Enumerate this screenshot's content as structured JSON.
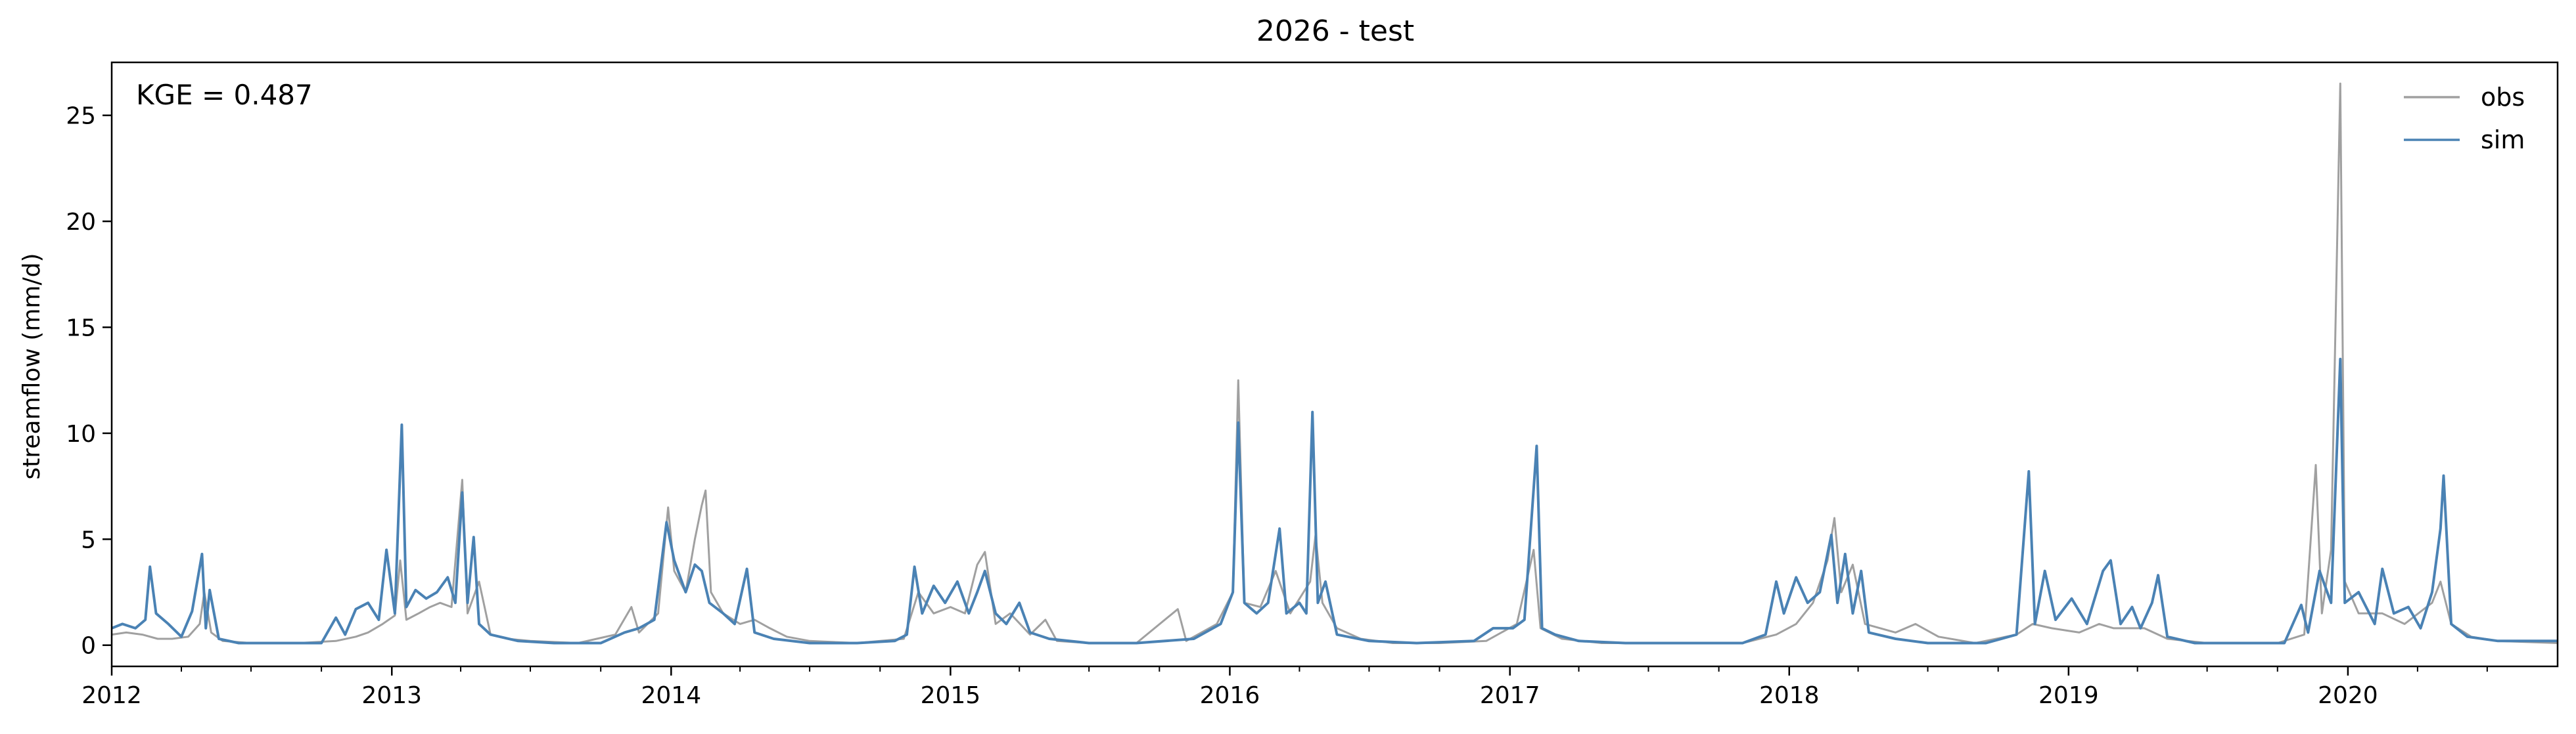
{
  "chart_data": {
    "type": "line",
    "title": "2026 - test",
    "xlabel": "",
    "ylabel": "streamflow (mm/d)",
    "annotation": "KGE = 0.487",
    "legend_position": "top-right",
    "grid": false,
    "xlim": [
      "2012-01-01",
      "2020-10-01"
    ],
    "ylim": [
      -1,
      27.5
    ],
    "x_major_ticks": [
      "2012",
      "2013",
      "2014",
      "2015",
      "2016",
      "2017",
      "2018",
      "2019",
      "2020"
    ],
    "y_ticks": [
      0,
      5,
      10,
      15,
      20,
      25
    ],
    "series": [
      {
        "name": "obs",
        "color": "#a0a0a0",
        "points": [
          [
            "2012-01-01",
            0.5
          ],
          [
            "2012-01-20",
            0.6
          ],
          [
            "2012-02-10",
            0.5
          ],
          [
            "2012-03-01",
            0.3
          ],
          [
            "2012-03-20",
            0.3
          ],
          [
            "2012-04-10",
            0.4
          ],
          [
            "2012-04-25",
            1.0
          ],
          [
            "2012-05-01",
            2.5
          ],
          [
            "2012-05-10",
            0.6
          ],
          [
            "2012-05-25",
            0.2
          ],
          [
            "2012-07-01",
            0.1
          ],
          [
            "2012-09-01",
            0.1
          ],
          [
            "2012-10-20",
            0.2
          ],
          [
            "2012-11-15",
            0.4
          ],
          [
            "2012-12-01",
            0.6
          ],
          [
            "2012-12-20",
            1.0
          ],
          [
            "2013-01-05",
            1.4
          ],
          [
            "2013-01-12",
            4.0
          ],
          [
            "2013-01-20",
            1.2
          ],
          [
            "2013-02-05",
            1.5
          ],
          [
            "2013-02-20",
            1.8
          ],
          [
            "2013-03-05",
            2.0
          ],
          [
            "2013-03-20",
            1.8
          ],
          [
            "2013-04-03",
            7.8
          ],
          [
            "2013-04-10",
            1.5
          ],
          [
            "2013-04-25",
            3.0
          ],
          [
            "2013-05-10",
            0.5
          ],
          [
            "2013-06-01",
            0.3
          ],
          [
            "2013-07-01",
            0.2
          ],
          [
            "2013-09-01",
            0.1
          ],
          [
            "2013-10-20",
            0.5
          ],
          [
            "2013-11-10",
            1.8
          ],
          [
            "2013-11-20",
            0.6
          ],
          [
            "2013-12-15",
            1.5
          ],
          [
            "2013-12-28",
            6.5
          ],
          [
            "2014-01-05",
            3.5
          ],
          [
            "2014-01-20",
            2.5
          ],
          [
            "2014-02-01",
            5.0
          ],
          [
            "2014-02-10",
            6.6
          ],
          [
            "2014-02-15",
            7.3
          ],
          [
            "2014-02-22",
            2.5
          ],
          [
            "2014-03-10",
            1.5
          ],
          [
            "2014-04-01",
            1.0
          ],
          [
            "2014-04-20",
            1.2
          ],
          [
            "2014-05-10",
            0.8
          ],
          [
            "2014-06-01",
            0.4
          ],
          [
            "2014-07-01",
            0.2
          ],
          [
            "2014-09-01",
            0.1
          ],
          [
            "2014-11-01",
            0.3
          ],
          [
            "2014-11-20",
            2.5
          ],
          [
            "2014-12-10",
            1.5
          ],
          [
            "2015-01-01",
            1.8
          ],
          [
            "2015-01-20",
            1.5
          ],
          [
            "2015-02-05",
            3.8
          ],
          [
            "2015-02-15",
            4.4
          ],
          [
            "2015-03-01",
            1.0
          ],
          [
            "2015-03-20",
            1.5
          ],
          [
            "2015-04-15",
            0.5
          ],
          [
            "2015-05-05",
            1.2
          ],
          [
            "2015-05-20",
            0.2
          ],
          [
            "2015-07-01",
            0.1
          ],
          [
            "2015-09-01",
            0.1
          ],
          [
            "2015-10-25",
            1.7
          ],
          [
            "2015-11-05",
            0.2
          ],
          [
            "2015-12-15",
            1.0
          ],
          [
            "2016-01-05",
            2.5
          ],
          [
            "2016-01-12",
            12.5
          ],
          [
            "2016-01-20",
            2.0
          ],
          [
            "2016-02-10",
            1.8
          ],
          [
            "2016-03-01",
            3.5
          ],
          [
            "2016-03-20",
            1.5
          ],
          [
            "2016-04-15",
            3.0
          ],
          [
            "2016-04-22",
            5.2
          ],
          [
            "2016-05-01",
            2.0
          ],
          [
            "2016-05-20",
            0.8
          ],
          [
            "2016-06-20",
            0.3
          ],
          [
            "2016-08-01",
            0.1
          ],
          [
            "2016-10-01",
            0.1
          ],
          [
            "2016-12-01",
            0.2
          ],
          [
            "2017-01-10",
            1.0
          ],
          [
            "2017-02-01",
            4.5
          ],
          [
            "2017-02-10",
            0.8
          ],
          [
            "2017-03-10",
            0.3
          ],
          [
            "2017-05-01",
            0.1
          ],
          [
            "2017-08-01",
            0.1
          ],
          [
            "2017-11-01",
            0.1
          ],
          [
            "2017-12-15",
            0.5
          ],
          [
            "2018-01-10",
            1.0
          ],
          [
            "2018-02-01",
            2.0
          ],
          [
            "2018-02-20",
            4.0
          ],
          [
            "2018-03-01",
            6.0
          ],
          [
            "2018-03-10",
            2.5
          ],
          [
            "2018-03-25",
            3.8
          ],
          [
            "2018-04-10",
            1.0
          ],
          [
            "2018-05-20",
            0.6
          ],
          [
            "2018-06-15",
            1.0
          ],
          [
            "2018-07-15",
            0.4
          ],
          [
            "2018-09-01",
            0.1
          ],
          [
            "2018-10-25",
            0.5
          ],
          [
            "2018-11-15",
            1.0
          ],
          [
            "2018-12-10",
            0.8
          ],
          [
            "2019-01-15",
            0.6
          ],
          [
            "2019-02-10",
            1.0
          ],
          [
            "2019-03-01",
            0.8
          ],
          [
            "2019-04-10",
            0.8
          ],
          [
            "2019-05-10",
            0.3
          ],
          [
            "2019-07-01",
            0.1
          ],
          [
            "2019-10-01",
            0.1
          ],
          [
            "2019-11-05",
            0.5
          ],
          [
            "2019-11-20",
            8.5
          ],
          [
            "2019-11-28",
            1.5
          ],
          [
            "2019-12-10",
            4.5
          ],
          [
            "2019-12-22",
            26.5
          ],
          [
            "2019-12-28",
            3.0
          ],
          [
            "2020-01-15",
            1.5
          ],
          [
            "2020-02-15",
            1.5
          ],
          [
            "2020-03-15",
            1.0
          ],
          [
            "2020-04-20",
            2.0
          ],
          [
            "2020-05-01",
            3.0
          ],
          [
            "2020-05-15",
            1.0
          ],
          [
            "2020-06-10",
            0.4
          ],
          [
            "2020-07-15",
            0.2
          ],
          [
            "2020-10-01",
            0.1
          ]
        ]
      },
      {
        "name": "sim",
        "color": "#4a82b4",
        "points": [
          [
            "2012-01-01",
            0.8
          ],
          [
            "2012-01-15",
            1.0
          ],
          [
            "2012-02-01",
            0.8
          ],
          [
            "2012-02-14",
            1.2
          ],
          [
            "2012-02-20",
            3.7
          ],
          [
            "2012-02-28",
            1.5
          ],
          [
            "2012-03-15",
            1.0
          ],
          [
            "2012-04-01",
            0.4
          ],
          [
            "2012-04-15",
            1.6
          ],
          [
            "2012-04-28",
            4.3
          ],
          [
            "2012-05-03",
            0.8
          ],
          [
            "2012-05-08",
            2.6
          ],
          [
            "2012-05-20",
            0.3
          ],
          [
            "2012-06-15",
            0.1
          ],
          [
            "2012-08-01",
            0.1
          ],
          [
            "2012-10-01",
            0.1
          ],
          [
            "2012-10-20",
            1.3
          ],
          [
            "2012-11-01",
            0.5
          ],
          [
            "2012-11-15",
            1.7
          ],
          [
            "2012-12-01",
            2.0
          ],
          [
            "2012-12-15",
            1.2
          ],
          [
            "2012-12-25",
            4.5
          ],
          [
            "2013-01-05",
            1.5
          ],
          [
            "2013-01-14",
            10.4
          ],
          [
            "2013-01-20",
            1.8
          ],
          [
            "2013-02-01",
            2.6
          ],
          [
            "2013-02-15",
            2.2
          ],
          [
            "2013-03-01",
            2.5
          ],
          [
            "2013-03-15",
            3.2
          ],
          [
            "2013-03-25",
            2.0
          ],
          [
            "2013-04-03",
            7.2
          ],
          [
            "2013-04-10",
            2.0
          ],
          [
            "2013-04-18",
            5.1
          ],
          [
            "2013-04-25",
            1.0
          ],
          [
            "2013-05-10",
            0.5
          ],
          [
            "2013-06-15",
            0.2
          ],
          [
            "2013-08-01",
            0.1
          ],
          [
            "2013-10-01",
            0.1
          ],
          [
            "2013-11-01",
            0.6
          ],
          [
            "2013-11-20",
            0.8
          ],
          [
            "2013-12-10",
            1.2
          ],
          [
            "2013-12-26",
            5.8
          ],
          [
            "2014-01-05",
            4.0
          ],
          [
            "2014-01-20",
            2.5
          ],
          [
            "2014-02-01",
            3.8
          ],
          [
            "2014-02-10",
            3.5
          ],
          [
            "2014-02-20",
            2.0
          ],
          [
            "2014-03-10",
            1.5
          ],
          [
            "2014-03-25",
            1.0
          ],
          [
            "2014-04-10",
            3.6
          ],
          [
            "2014-04-20",
            0.6
          ],
          [
            "2014-05-15",
            0.3
          ],
          [
            "2014-07-01",
            0.1
          ],
          [
            "2014-09-01",
            0.1
          ],
          [
            "2014-10-20",
            0.2
          ],
          [
            "2014-11-05",
            0.5
          ],
          [
            "2014-11-15",
            3.7
          ],
          [
            "2014-11-25",
            1.5
          ],
          [
            "2014-12-10",
            2.8
          ],
          [
            "2014-12-25",
            2.0
          ],
          [
            "2015-01-10",
            3.0
          ],
          [
            "2015-01-25",
            1.5
          ],
          [
            "2015-02-05",
            2.5
          ],
          [
            "2015-02-15",
            3.5
          ],
          [
            "2015-03-01",
            1.5
          ],
          [
            "2015-03-15",
            1.0
          ],
          [
            "2015-04-01",
            2.0
          ],
          [
            "2015-04-15",
            0.6
          ],
          [
            "2015-05-10",
            0.3
          ],
          [
            "2015-07-01",
            0.1
          ],
          [
            "2015-09-01",
            0.1
          ],
          [
            "2015-11-15",
            0.3
          ],
          [
            "2015-12-20",
            1.0
          ],
          [
            "2016-01-05",
            2.5
          ],
          [
            "2016-01-12",
            10.5
          ],
          [
            "2016-01-20",
            2.0
          ],
          [
            "2016-02-05",
            1.5
          ],
          [
            "2016-02-20",
            2.0
          ],
          [
            "2016-03-06",
            5.5
          ],
          [
            "2016-03-15",
            1.5
          ],
          [
            "2016-04-01",
            2.0
          ],
          [
            "2016-04-10",
            1.5
          ],
          [
            "2016-04-18",
            11.0
          ],
          [
            "2016-04-25",
            2.0
          ],
          [
            "2016-05-05",
            3.0
          ],
          [
            "2016-05-20",
            0.5
          ],
          [
            "2016-07-01",
            0.2
          ],
          [
            "2016-09-01",
            0.1
          ],
          [
            "2016-11-15",
            0.2
          ],
          [
            "2016-12-10",
            0.8
          ],
          [
            "2017-01-05",
            0.8
          ],
          [
            "2017-01-20",
            1.2
          ],
          [
            "2017-02-05",
            9.4
          ],
          [
            "2017-02-12",
            0.8
          ],
          [
            "2017-03-01",
            0.5
          ],
          [
            "2017-04-01",
            0.2
          ],
          [
            "2017-06-01",
            0.1
          ],
          [
            "2017-09-01",
            0.1
          ],
          [
            "2017-11-01",
            0.1
          ],
          [
            "2017-12-01",
            0.5
          ],
          [
            "2017-12-15",
            3.0
          ],
          [
            "2017-12-25",
            1.5
          ],
          [
            "2018-01-10",
            3.2
          ],
          [
            "2018-01-25",
            2.0
          ],
          [
            "2018-02-10",
            2.5
          ],
          [
            "2018-02-25",
            5.2
          ],
          [
            "2018-03-05",
            2.0
          ],
          [
            "2018-03-15",
            4.3
          ],
          [
            "2018-03-25",
            1.5
          ],
          [
            "2018-04-05",
            3.5
          ],
          [
            "2018-04-15",
            0.6
          ],
          [
            "2018-05-20",
            0.3
          ],
          [
            "2018-07-01",
            0.1
          ],
          [
            "2018-09-15",
            0.1
          ],
          [
            "2018-10-25",
            0.5
          ],
          [
            "2018-11-10",
            8.2
          ],
          [
            "2018-11-18",
            1.0
          ],
          [
            "2018-12-01",
            3.5
          ],
          [
            "2018-12-15",
            1.2
          ],
          [
            "2019-01-05",
            2.2
          ],
          [
            "2019-01-25",
            1.0
          ],
          [
            "2019-02-15",
            3.5
          ],
          [
            "2019-02-25",
            4.0
          ],
          [
            "2019-03-10",
            1.0
          ],
          [
            "2019-03-25",
            1.8
          ],
          [
            "2019-04-05",
            0.8
          ],
          [
            "2019-04-20",
            2.0
          ],
          [
            "2019-04-28",
            3.3
          ],
          [
            "2019-05-10",
            0.4
          ],
          [
            "2019-06-15",
            0.1
          ],
          [
            "2019-08-01",
            0.1
          ],
          [
            "2019-10-10",
            0.1
          ],
          [
            "2019-11-01",
            1.9
          ],
          [
            "2019-11-10",
            0.6
          ],
          [
            "2019-11-25",
            3.5
          ],
          [
            "2019-12-10",
            2.0
          ],
          [
            "2019-12-22",
            13.5
          ],
          [
            "2019-12-28",
            2.0
          ],
          [
            "2020-01-15",
            2.5
          ],
          [
            "2020-02-05",
            1.0
          ],
          [
            "2020-02-15",
            3.6
          ],
          [
            "2020-03-01",
            1.5
          ],
          [
            "2020-03-20",
            1.8
          ],
          [
            "2020-04-05",
            0.8
          ],
          [
            "2020-04-20",
            2.5
          ],
          [
            "2020-05-01",
            5.5
          ],
          [
            "2020-05-05",
            8.0
          ],
          [
            "2020-05-15",
            1.0
          ],
          [
            "2020-06-05",
            0.4
          ],
          [
            "2020-07-15",
            0.2
          ],
          [
            "2020-10-01",
            0.2
          ]
        ]
      }
    ]
  }
}
